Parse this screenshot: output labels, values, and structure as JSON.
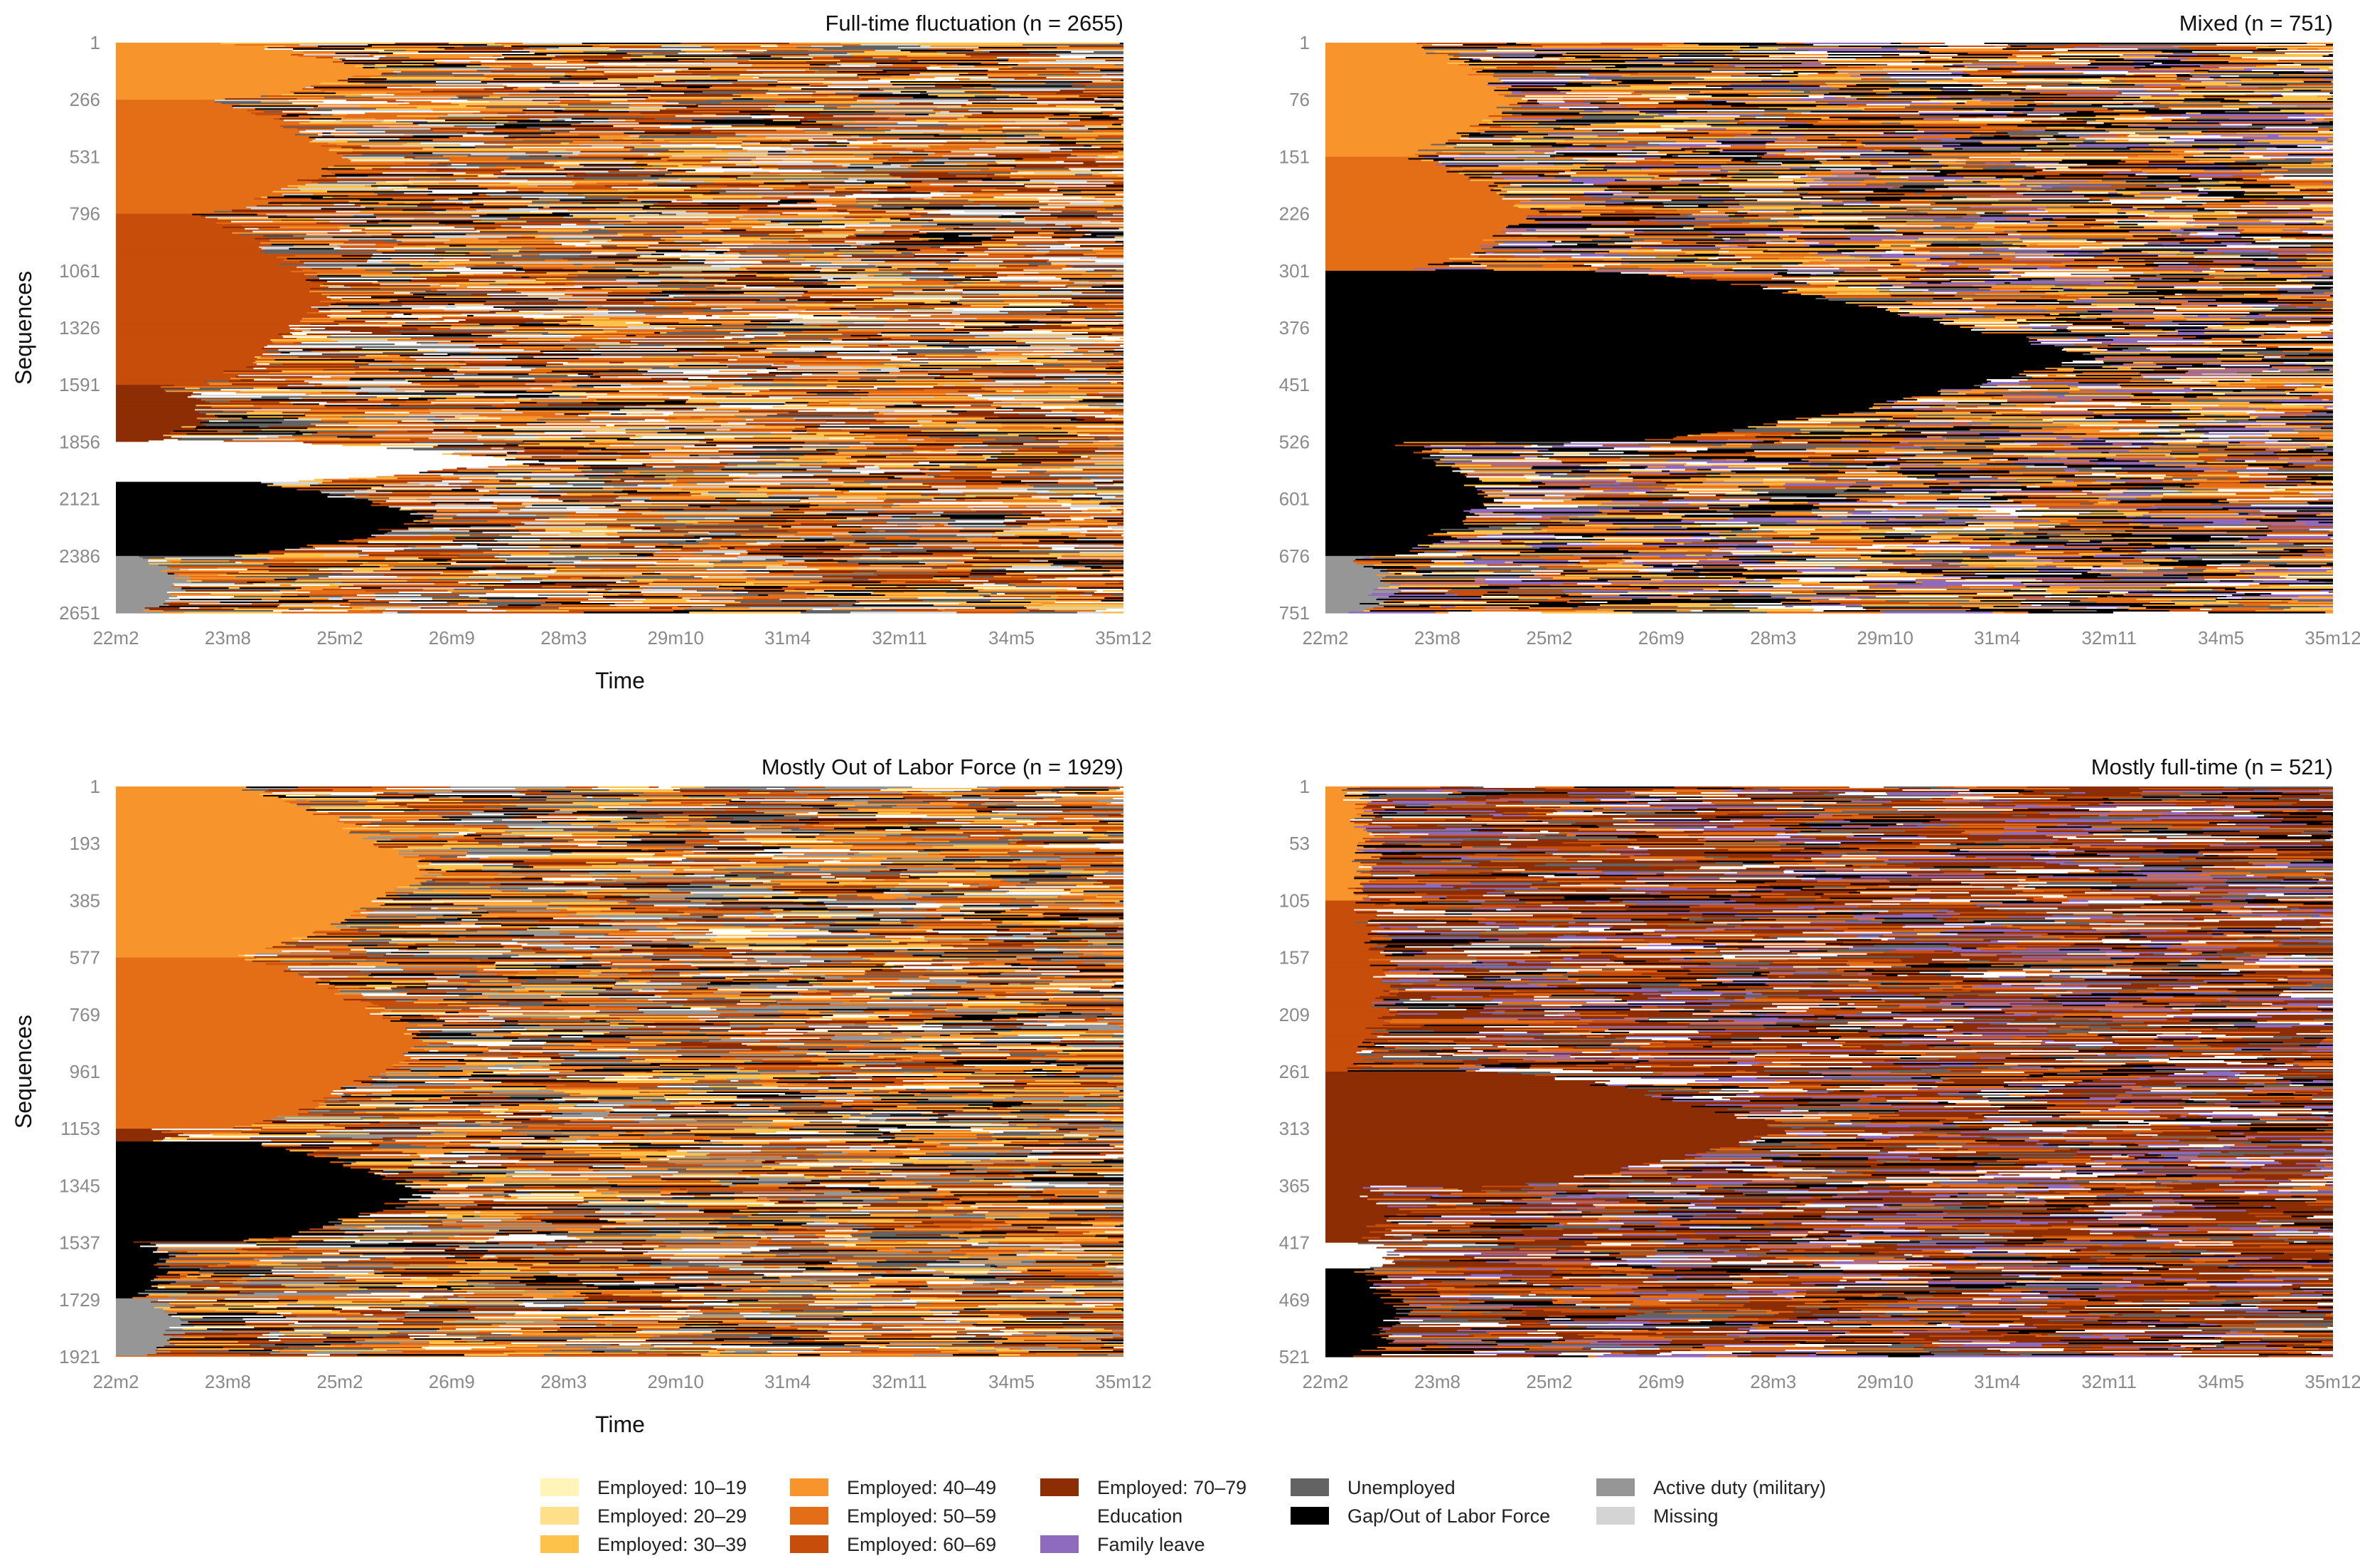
{
  "figure": {
    "x_ticks": [
      "22m2",
      "23m8",
      "25m2",
      "26m9",
      "28m3",
      "29m10",
      "31m4",
      "32m11",
      "34m5",
      "35m12"
    ],
    "x_axis_label": "Time",
    "y_axis_label": "Sequences"
  },
  "legend": [
    {
      "label": "Employed: 10–19",
      "color": "#fff5b8"
    },
    {
      "label": "Employed: 20–29",
      "color": "#fee08b"
    },
    {
      "label": "Employed: 30–39",
      "color": "#fdc24a"
    },
    {
      "label": "Employed: 40–49",
      "color": "#f7942c"
    },
    {
      "label": "Employed: 50–59",
      "color": "#e46e17"
    },
    {
      "label": "Employed: 60–69",
      "color": "#c74d0a"
    },
    {
      "label": "Employed: 70–79",
      "color": "#8c2d04"
    },
    {
      "label": "Education",
      "color": "#ffffff"
    },
    {
      "label": "Family leave",
      "color": "#8e6bbf"
    },
    {
      "label": "Unemployed",
      "color": "#636363"
    },
    {
      "label": "Gap/Out of Labor Force",
      "color": "#000000"
    },
    {
      "label": "Active duty (military)",
      "color": "#969696"
    },
    {
      "label": "Missing",
      "color": "#d4d4d4"
    }
  ],
  "chart_data": [
    {
      "type": "heatmap",
      "subtype": "sequence index plot",
      "title": "Full-time fluctuation (n = 2655)",
      "n": 2655,
      "xlabel": "Time",
      "ylabel": "Sequences",
      "x_ticks": [
        "22m2",
        "23m8",
        "25m2",
        "26m9",
        "28m3",
        "29m10",
        "31m4",
        "32m11",
        "34m5",
        "35m12"
      ],
      "y_ticks": [
        "1",
        "266",
        "531",
        "796",
        "1061",
        "1326",
        "1591",
        "1856",
        "2121",
        "2386",
        "2651"
      ],
      "dominant_state": "Employed: 60–69",
      "blocks": [
        {
          "state": "Employed: 40–49",
          "from": 1,
          "to": 266,
          "persist": 0.25
        },
        {
          "state": "Employed: 50–59",
          "from": 266,
          "to": 796,
          "persist": 0.22
        },
        {
          "state": "Employed: 60–69",
          "from": 796,
          "to": 1591,
          "persist": 0.2
        },
        {
          "state": "Employed: 70–79",
          "from": 1591,
          "to": 1856,
          "persist": 0.08
        },
        {
          "state": "Education",
          "from": 1856,
          "to": 2040,
          "persist": 0.4
        },
        {
          "state": "Gap/Out of Labor Force",
          "from": 2040,
          "to": 2386,
          "persist": 0.3
        },
        {
          "state": "Active duty (military)",
          "from": 2386,
          "to": 2651,
          "persist": 0.05
        }
      ]
    },
    {
      "type": "heatmap",
      "subtype": "sequence index plot",
      "title": "Mixed (n = 751)",
      "n": 751,
      "xlabel": "",
      "ylabel": "",
      "x_ticks": [
        "22m2",
        "23m8",
        "25m2",
        "26m9",
        "28m3",
        "29m10",
        "31m4",
        "32m11",
        "34m5",
        "35m12"
      ],
      "y_ticks": [
        "1",
        "76",
        "151",
        "226",
        "301",
        "376",
        "451",
        "526",
        "601",
        "676",
        "751"
      ],
      "dominant_state": "Gap/Out of Labor Force",
      "blocks": [
        {
          "state": "Employed: 40–49",
          "from": 1,
          "to": 151,
          "persist": 0.18
        },
        {
          "state": "Employed: 50–59",
          "from": 151,
          "to": 301,
          "persist": 0.2
        },
        {
          "state": "Gap/Out of Labor Force",
          "from": 301,
          "to": 526,
          "persist": 0.75
        },
        {
          "state": "Gap/Out of Labor Force",
          "from": 526,
          "to": 676,
          "persist": 0.15
        },
        {
          "state": "Active duty (military)",
          "from": 676,
          "to": 751,
          "persist": 0.05
        }
      ]
    },
    {
      "type": "heatmap",
      "subtype": "sequence index plot",
      "title": "Mostly Out of Labor Force (n = 1929)",
      "n": 1929,
      "xlabel": "Time",
      "ylabel": "Sequences",
      "x_ticks": [
        "22m2",
        "23m8",
        "25m2",
        "26m9",
        "28m3",
        "29m10",
        "31m4",
        "32m11",
        "34m5",
        "35m12"
      ],
      "y_ticks": [
        "1",
        "193",
        "385",
        "577",
        "769",
        "961",
        "1153",
        "1345",
        "1537",
        "1729",
        "1921"
      ],
      "dominant_state": "Employed: 50–59",
      "blocks": [
        {
          "state": "Employed: 40–49",
          "from": 1,
          "to": 577,
          "persist": 0.3
        },
        {
          "state": "Employed: 50–59",
          "from": 577,
          "to": 1153,
          "persist": 0.3
        },
        {
          "state": "Employed: 70–79",
          "from": 1153,
          "to": 1200,
          "persist": 0.05
        },
        {
          "state": "Gap/Out of Labor Force",
          "from": 1200,
          "to": 1537,
          "persist": 0.3
        },
        {
          "state": "Gap/Out of Labor Force",
          "from": 1537,
          "to": 1729,
          "persist": 0.04
        },
        {
          "state": "Active duty (military)",
          "from": 1729,
          "to": 1921,
          "persist": 0.05
        }
      ]
    },
    {
      "type": "heatmap",
      "subtype": "sequence index plot",
      "title": "Mostly full-time (n = 521)",
      "n": 521,
      "xlabel": "",
      "ylabel": "",
      "x_ticks": [
        "22m2",
        "23m8",
        "25m2",
        "26m9",
        "28m3",
        "29m10",
        "31m4",
        "32m11",
        "34m5",
        "35m12"
      ],
      "y_ticks": [
        "1",
        "53",
        "105",
        "157",
        "209",
        "261",
        "313",
        "365",
        "417",
        "469",
        "521"
      ],
      "dominant_state": "Employed: 70–79",
      "blocks": [
        {
          "state": "Employed: 40–49",
          "from": 1,
          "to": 105,
          "persist": 0.03
        },
        {
          "state": "Employed: 60–69",
          "from": 105,
          "to": 261,
          "persist": 0.05
        },
        {
          "state": "Employed: 70–79",
          "from": 261,
          "to": 365,
          "persist": 0.45
        },
        {
          "state": "Employed: 70–79",
          "from": 365,
          "to": 417,
          "persist": 0.05
        },
        {
          "state": "Education",
          "from": 417,
          "to": 440,
          "persist": 0.06
        },
        {
          "state": "Gap/Out of Labor Force",
          "from": 440,
          "to": 521,
          "persist": 0.06
        }
      ]
    }
  ]
}
